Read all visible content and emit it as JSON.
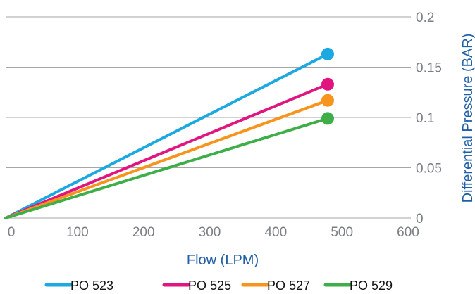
{
  "chart_data": {
    "type": "line",
    "title": "",
    "xlabel": "Flow (LPM)",
    "ylabel": "Differential Pressure (BAR)",
    "xlim": [
      0,
      600
    ],
    "ylim": [
      0,
      0.2
    ],
    "x_ticks": [
      "0",
      "100",
      "200",
      "300",
      "400",
      "500",
      "600"
    ],
    "y_ticks": [
      "0",
      "0.05",
      "0.1",
      "0.15",
      "0.2"
    ],
    "y_axis_side": "right",
    "grid": "horizontal",
    "legend_position": "bottom",
    "series": [
      {
        "name": "PO 523",
        "color": "#1ca8e0",
        "x": [
          0,
          487
        ],
        "y": [
          0,
          0.163
        ]
      },
      {
        "name": "PO 525",
        "color": "#e0157f",
        "x": [
          0,
          487
        ],
        "y": [
          0,
          0.133
        ]
      },
      {
        "name": "PO 527",
        "color": "#f7941d",
        "x": [
          0,
          487
        ],
        "y": [
          0,
          0.117
        ]
      },
      {
        "name": "PO 529",
        "color": "#3fae49",
        "x": [
          0,
          487
        ],
        "y": [
          0,
          0.099
        ]
      }
    ],
    "axis_title_color": "#1f5fa6",
    "gridline_color": "#a6a6a6"
  }
}
